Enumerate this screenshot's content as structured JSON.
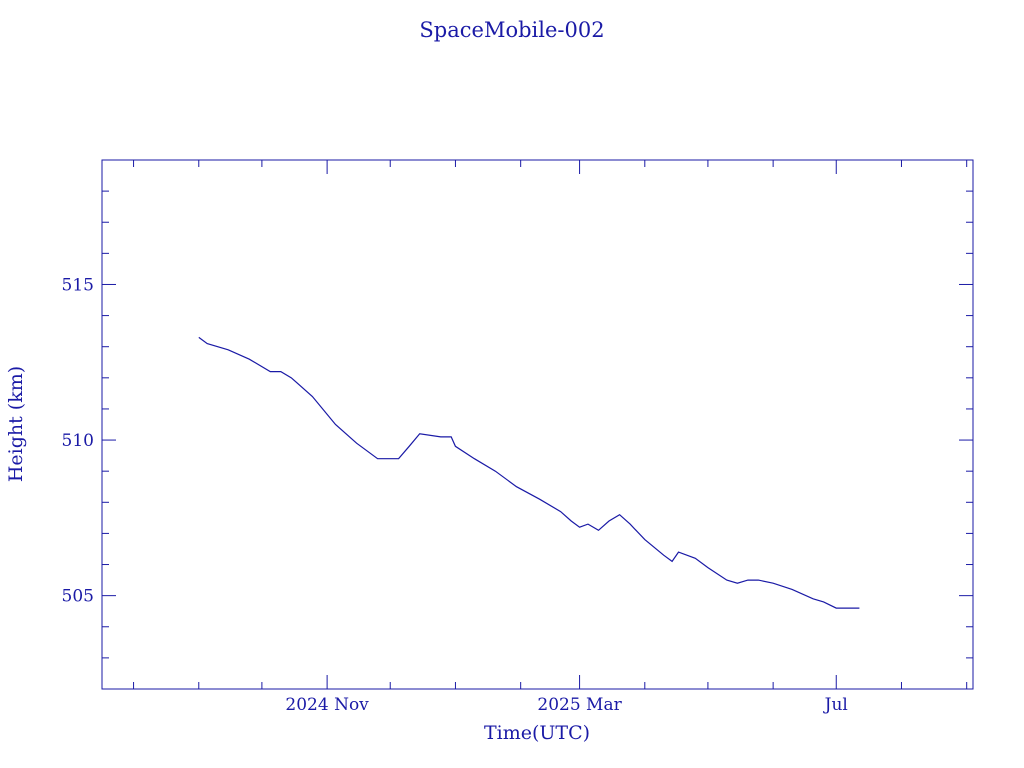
{
  "chart_data": {
    "type": "line",
    "title": "SpaceMobile-002",
    "xlabel": "Time(UTC)",
    "ylabel": "Height (km)",
    "xlim": [
      "2024-07-17",
      "2025-09-04"
    ],
    "ylim": [
      502,
      519
    ],
    "x_ticks": [
      {
        "date": "2024-11-01",
        "label": "2024 Nov"
      },
      {
        "date": "2025-03-01",
        "label": "2025 Mar"
      },
      {
        "date": "2025-07-01",
        "label": "Jul"
      }
    ],
    "y_ticks": [
      505,
      510,
      515
    ],
    "grid": false,
    "colors": {
      "line": "#1a1aa6",
      "frame": "#1a1aa6",
      "text": "#1a1aa6"
    },
    "series": [
      {
        "x": [
          "2024-09-01",
          "2024-09-05",
          "2024-09-15",
          "2024-09-25",
          "2024-10-05",
          "2024-10-10",
          "2024-10-15",
          "2024-10-25",
          "2024-11-05",
          "2024-11-15",
          "2024-11-25",
          "2024-12-05",
          "2024-12-10",
          "2024-12-15",
          "2024-12-25",
          "2024-12-30",
          "2025-01-01",
          "2025-01-10",
          "2025-01-20",
          "2025-01-30",
          "2025-02-10",
          "2025-02-20",
          "2025-02-25",
          "2025-03-01",
          "2025-03-05",
          "2025-03-10",
          "2025-03-15",
          "2025-03-20",
          "2025-03-25",
          "2025-04-01",
          "2025-04-10",
          "2025-04-14",
          "2025-04-17",
          "2025-04-25",
          "2025-05-01",
          "2025-05-10",
          "2025-05-15",
          "2025-05-20",
          "2025-05-25",
          "2025-06-01",
          "2025-06-10",
          "2025-06-20",
          "2025-06-25",
          "2025-07-01",
          "2025-07-05",
          "2025-07-12"
        ],
        "y": [
          513.3,
          513.1,
          512.9,
          512.6,
          512.2,
          512.2,
          512.0,
          511.4,
          510.5,
          509.9,
          509.4,
          509.4,
          509.8,
          510.2,
          510.1,
          510.1,
          509.8,
          509.4,
          509.0,
          508.5,
          508.1,
          507.7,
          507.4,
          507.2,
          507.3,
          507.1,
          507.4,
          507.6,
          507.3,
          506.8,
          506.3,
          506.1,
          506.4,
          506.2,
          505.9,
          505.5,
          505.4,
          505.5,
          505.5,
          505.4,
          505.2,
          504.9,
          504.8,
          504.6,
          504.6,
          504.6
        ]
      }
    ]
  }
}
